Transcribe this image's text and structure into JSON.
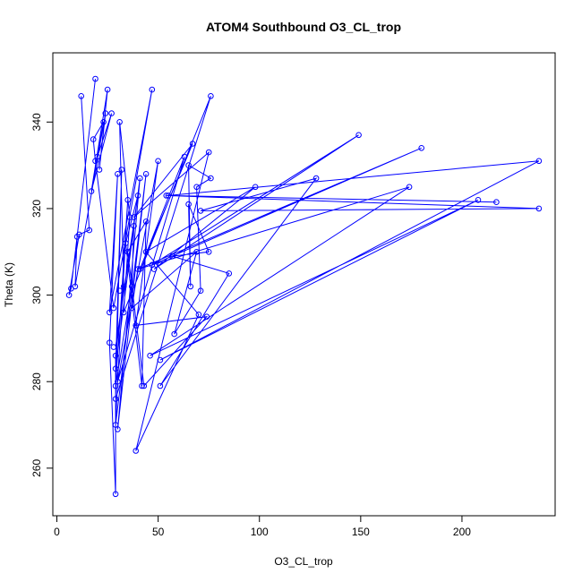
{
  "chart_data": {
    "type": "line",
    "title": "ATOM4 Southbound O3_CL_trop",
    "xlabel": "O3_CL_trop",
    "ylabel": "Theta (K)",
    "xlim": [
      -2,
      246
    ],
    "ylim": [
      249,
      356
    ],
    "xticks": [
      0,
      50,
      100,
      150,
      200
    ],
    "yticks": [
      260,
      280,
      300,
      320,
      340
    ],
    "grid": false,
    "legend": "none",
    "color": "#0000ff",
    "series": [
      {
        "marker": "open-circle",
        "points": [
          [
            6,
            300
          ],
          [
            7,
            301.5
          ],
          [
            9,
            302
          ],
          [
            10,
            313.5
          ],
          [
            11,
            314
          ],
          [
            12,
            346
          ],
          [
            16,
            315
          ],
          [
            17,
            324
          ],
          [
            18,
            336
          ],
          [
            19,
            350
          ],
          [
            19,
            331
          ],
          [
            20,
            332
          ],
          [
            21,
            329
          ],
          [
            23,
            340
          ],
          [
            24,
            342
          ],
          [
            25,
            347.5
          ],
          [
            26,
            296
          ],
          [
            26,
            289
          ],
          [
            27,
            342
          ],
          [
            28,
            297
          ],
          [
            28,
            288
          ],
          [
            29,
            254
          ],
          [
            29,
            286
          ],
          [
            29,
            283
          ],
          [
            29,
            279
          ],
          [
            29,
            276
          ],
          [
            29,
            270
          ],
          [
            30,
            269
          ],
          [
            30,
            280
          ],
          [
            30,
            328
          ],
          [
            31,
            301
          ],
          [
            31,
            340
          ],
          [
            32,
            329
          ],
          [
            33,
            302
          ],
          [
            33,
            296
          ],
          [
            34,
            312
          ],
          [
            35,
            322
          ],
          [
            35,
            310
          ],
          [
            36,
            318
          ],
          [
            37,
            302
          ],
          [
            37,
            297
          ],
          [
            38,
            316
          ],
          [
            38,
            318
          ],
          [
            39,
            293
          ],
          [
            39,
            264
          ],
          [
            40,
            306
          ],
          [
            40,
            323
          ],
          [
            41,
            327
          ],
          [
            41,
            306
          ],
          [
            42,
            279
          ],
          [
            43,
            279
          ],
          [
            44,
            317
          ],
          [
            44,
            310
          ],
          [
            44,
            328
          ],
          [
            46,
            286
          ],
          [
            47,
            347.5
          ],
          [
            47,
            307
          ],
          [
            48,
            306
          ],
          [
            50,
            331
          ],
          [
            51,
            279
          ],
          [
            51,
            285
          ],
          [
            54,
            323
          ],
          [
            55,
            323
          ],
          [
            57,
            309
          ],
          [
            58,
            291
          ],
          [
            63,
            332
          ],
          [
            65,
            321
          ],
          [
            65,
            330
          ],
          [
            66,
            302
          ],
          [
            67,
            335
          ],
          [
            69,
            310
          ],
          [
            69,
            325
          ],
          [
            70,
            295.5
          ],
          [
            71,
            319.5
          ],
          [
            71,
            301
          ],
          [
            74,
            295
          ],
          [
            75,
            310
          ],
          [
            75,
            333
          ],
          [
            76,
            346
          ],
          [
            76,
            327
          ],
          [
            85,
            305
          ],
          [
            98,
            325
          ],
          [
            128,
            327
          ],
          [
            149,
            337
          ],
          [
            174,
            325
          ],
          [
            180,
            334
          ],
          [
            208,
            322
          ],
          [
            217,
            321.5
          ],
          [
            238,
            331
          ],
          [
            238,
            320
          ]
        ],
        "path": [
          [
            12,
            346
          ],
          [
            16,
            315
          ],
          [
            11,
            314
          ],
          [
            6,
            300
          ],
          [
            7,
            301.5
          ],
          [
            19,
            350
          ],
          [
            10,
            313.5
          ],
          [
            9,
            302
          ],
          [
            24,
            342
          ],
          [
            21,
            329
          ],
          [
            25,
            347.5
          ],
          [
            17,
            324
          ],
          [
            27,
            342
          ],
          [
            20,
            332
          ],
          [
            23,
            340
          ],
          [
            18,
            336
          ],
          [
            19,
            331
          ],
          [
            28,
            297
          ],
          [
            47,
            347.5
          ],
          [
            26,
            296
          ],
          [
            30,
            328
          ],
          [
            26,
            289
          ],
          [
            29,
            254
          ],
          [
            29,
            286
          ],
          [
            33,
            302
          ],
          [
            31,
            340
          ],
          [
            36,
            318
          ],
          [
            33,
            296
          ],
          [
            76,
            346
          ],
          [
            29,
            276
          ],
          [
            32,
            329
          ],
          [
            29,
            283
          ],
          [
            41,
            327
          ],
          [
            30,
            269
          ],
          [
            44,
            328
          ],
          [
            29,
            270
          ],
          [
            30,
            280
          ],
          [
            35,
            322
          ],
          [
            29,
            279
          ],
          [
            37,
            302
          ],
          [
            38,
            316
          ],
          [
            29,
            288
          ],
          [
            40,
            323
          ],
          [
            34,
            312
          ],
          [
            42,
            279
          ],
          [
            44,
            317
          ],
          [
            35,
            310
          ],
          [
            43,
            279
          ],
          [
            74,
            295
          ],
          [
            39,
            293
          ],
          [
            50,
            331
          ],
          [
            30,
            280
          ],
          [
            63,
            332
          ],
          [
            41,
            306
          ],
          [
            67,
            335
          ],
          [
            38,
            318
          ],
          [
            75,
            333
          ],
          [
            39,
            264
          ],
          [
            70,
            295.5
          ],
          [
            44,
            310
          ],
          [
            98,
            325
          ],
          [
            48,
            306
          ],
          [
            149,
            337
          ],
          [
            47,
            307
          ],
          [
            180,
            334
          ],
          [
            40,
            306
          ],
          [
            174,
            325
          ],
          [
            46,
            286
          ],
          [
            208,
            322
          ],
          [
            51,
            285
          ],
          [
            238,
            331
          ],
          [
            55,
            323
          ],
          [
            217,
            321.5
          ],
          [
            54,
            323
          ],
          [
            238,
            320
          ],
          [
            71,
            319.5
          ],
          [
            128,
            327
          ],
          [
            51,
            279
          ],
          [
            85,
            305
          ],
          [
            57,
            309
          ],
          [
            75,
            310
          ],
          [
            65,
            321
          ],
          [
            66,
            302
          ],
          [
            65,
            330
          ],
          [
            76,
            327
          ],
          [
            69,
            325
          ],
          [
            71,
            301
          ],
          [
            58,
            291
          ],
          [
            69,
            310
          ],
          [
            37,
            297
          ],
          [
            40,
            306
          ]
        ]
      }
    ]
  }
}
